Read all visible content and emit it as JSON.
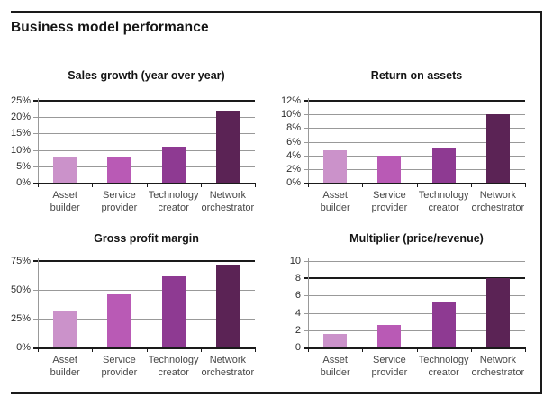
{
  "page_title": "Business model performance",
  "colors": {
    "bars": [
      "#cb92ca",
      "#b95ab5",
      "#8e3a92",
      "#5b2355"
    ],
    "gridline": "#999999",
    "grid_dark": "#1a1a1a",
    "y_label": "#2e2e2e",
    "x_label": "#474747"
  },
  "category_lines": [
    [
      "Asset",
      "builder"
    ],
    [
      "Service",
      "provider"
    ],
    [
      "Technology",
      "creator"
    ],
    [
      "Network",
      "orchestrator"
    ]
  ],
  "chart_data": [
    {
      "id": "sales-growth",
      "type": "bar",
      "title": "Sales growth (year over year)",
      "categories": [
        "Asset builder",
        "Service provider",
        "Technology creator",
        "Network orchestrator"
      ],
      "values": [
        8,
        8,
        11,
        22
      ],
      "unit": "%",
      "ylim": [
        0,
        25
      ],
      "ytick_step": 5,
      "y_tick_labels": [
        "0%",
        "5%",
        "10%",
        "15%",
        "20%",
        "25%"
      ],
      "dark_gridline_at": 25,
      "grid": true,
      "legend": false
    },
    {
      "id": "return-on-assets",
      "type": "bar",
      "title": "Return on assets",
      "categories": [
        "Asset builder",
        "Service provider",
        "Technology creator",
        "Network orchestrator"
      ],
      "values": [
        4.7,
        4,
        5,
        10
      ],
      "unit": "%",
      "ylim": [
        0,
        12
      ],
      "ytick_step": 2,
      "y_tick_labels": [
        "0%",
        "2%",
        "4%",
        "6%",
        "8%",
        "10%",
        "12%"
      ],
      "dark_gridline_at": 12,
      "grid": true,
      "legend": false
    },
    {
      "id": "gross-profit-margin",
      "type": "bar",
      "title": "Gross profit margin",
      "categories": [
        "Asset builder",
        "Service provider",
        "Technology creator",
        "Network orchestrator"
      ],
      "values": [
        31,
        46,
        62,
        72
      ],
      "unit": "%",
      "ylim": [
        0,
        75
      ],
      "ytick_step": 25,
      "y_tick_labels": [
        "0%",
        "25%",
        "50%",
        "75%"
      ],
      "dark_gridline_at": 75,
      "grid": true,
      "legend": false
    },
    {
      "id": "multiplier",
      "type": "bar",
      "title": "Multiplier (price/revenue)",
      "categories": [
        "Asset builder",
        "Service provider",
        "Technology creator",
        "Network orchestrator"
      ],
      "values": [
        1.6,
        2.6,
        5.2,
        8
      ],
      "unit": "x",
      "ylim": [
        0,
        10
      ],
      "ytick_step": 2,
      "y_tick_labels": [
        "0",
        "2",
        "4",
        "6",
        "8",
        "10"
      ],
      "dark_gridline_at": 8,
      "grid": true,
      "legend": false
    }
  ]
}
